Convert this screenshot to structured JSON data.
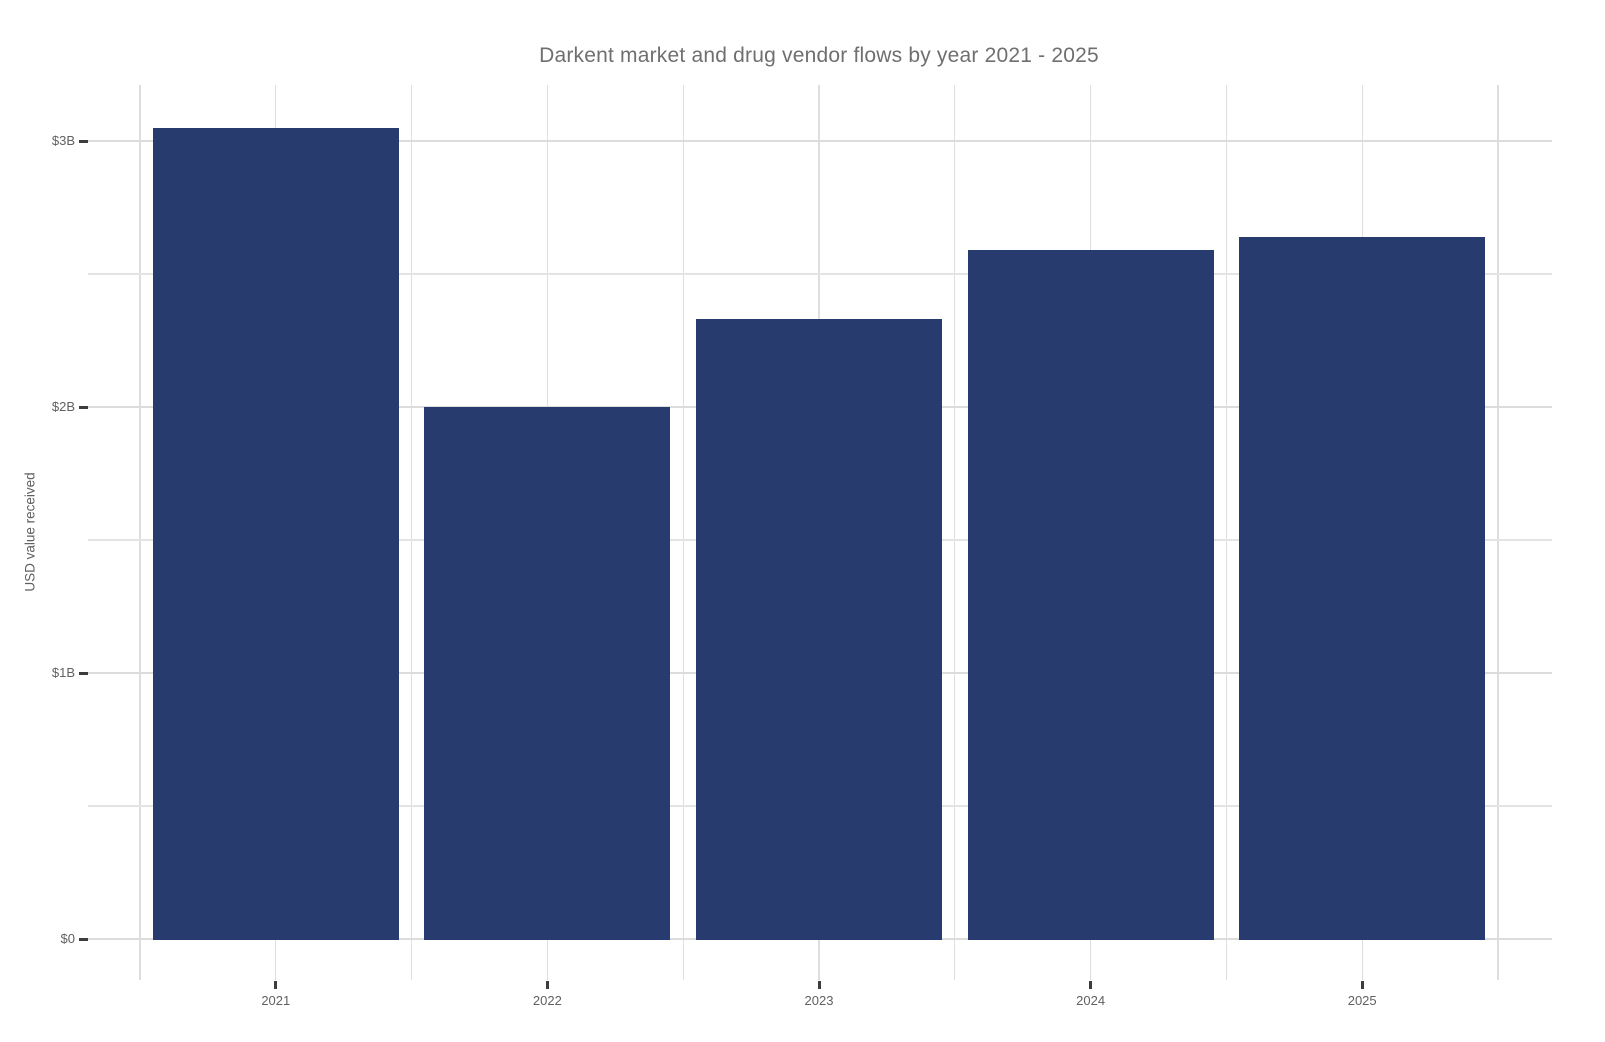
{
  "chart_data": {
    "type": "bar",
    "title": "Darkent market and drug vendor flows by year 2021 - 2025",
    "xlabel": "",
    "ylabel": "USD value received",
    "categories": [
      "2021",
      "2022",
      "2023",
      "2024",
      "2025"
    ],
    "values": [
      3.05,
      2.0,
      2.33,
      2.59,
      2.64
    ],
    "values_unit": "USD billions",
    "y_tick_values": [
      0,
      1,
      2,
      3
    ],
    "y_tick_labels": [
      "$0",
      "$1B",
      "$2B",
      "$3B"
    ],
    "y_minor_step": 0.5,
    "ylim": [
      0,
      3.21
    ],
    "grid": "major and minor horizontal, vertical at category centers and boundaries",
    "legend": "none"
  },
  "colors": {
    "bar": "#283B6E",
    "gridline_major": "#dcdcdc",
    "gridline_minor": "#e4e4e4",
    "gridline_vertical": "#dedede",
    "axis_tick": "#3c3c3c",
    "tick_label": "#616161",
    "title_text": "#6f6f6f",
    "background": "#ffffff"
  }
}
